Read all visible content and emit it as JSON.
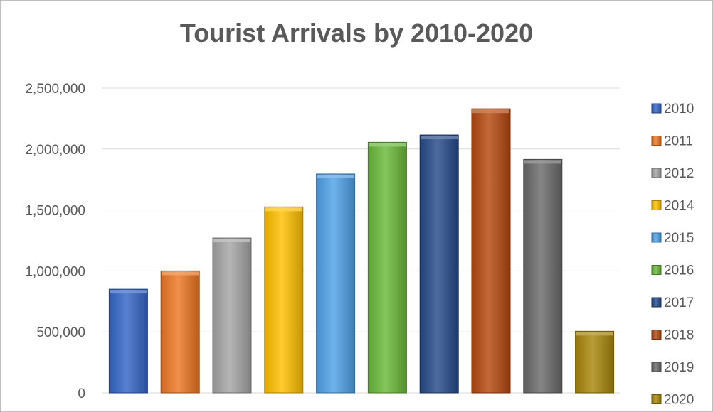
{
  "chart_data": {
    "type": "bar",
    "title": "Tourist Arrivals by 2010-2020",
    "xlabel": "",
    "ylabel": "",
    "categories": [
      "2010",
      "2011",
      "2012",
      "2014",
      "2015",
      "2016",
      "2017",
      "2018",
      "2019",
      "2020"
    ],
    "values": [
      850000,
      1000000,
      1270000,
      1525000,
      1795000,
      2055000,
      2115000,
      2330000,
      1915000,
      505000
    ],
    "colors": [
      "#3465c7",
      "#ed7723",
      "#a5a5a5",
      "#ffc000",
      "#4fa1e8",
      "#6ab93a",
      "#254a8a",
      "#b5480f",
      "#6a6a6a",
      "#a8860b"
    ],
    "ylim": [
      0,
      2500000
    ],
    "yticks": [
      0,
      500000,
      1000000,
      1500000,
      2000000,
      2500000
    ],
    "ytick_labels": [
      "0",
      "500,000",
      "1,000,000",
      "1,500,000",
      "2,000,000",
      "2,500,000"
    ],
    "grid": true,
    "legend_position": "right"
  }
}
